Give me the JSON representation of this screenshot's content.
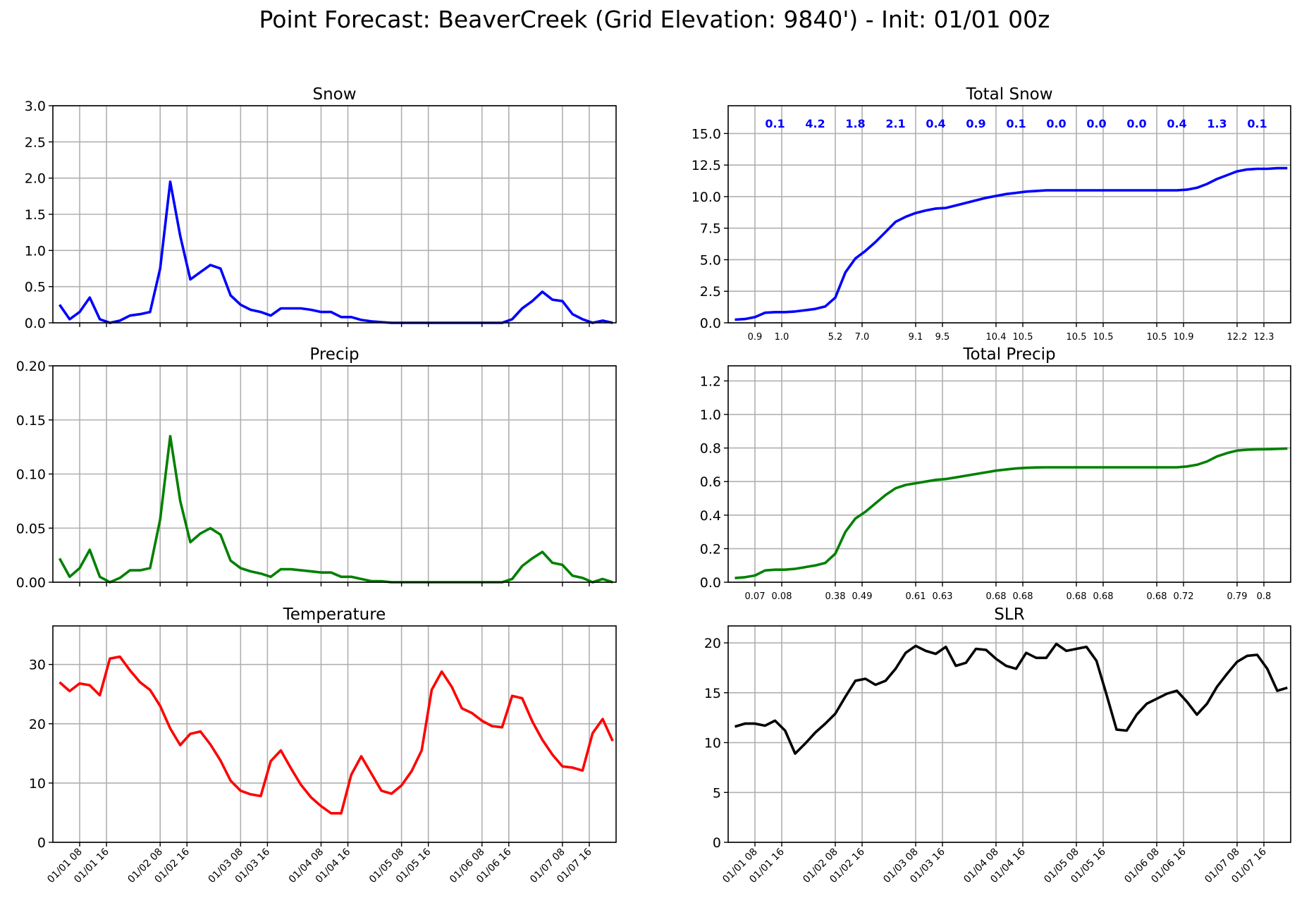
{
  "suptitle": "Point Forecast: BeaverCreek (Grid Elevation: 9840') - Init: 01/01 00z",
  "time_ticks": [
    "01/01 08",
    "01/01 16",
    "01/02 08",
    "01/02 16",
    "01/03 08",
    "01/03 16",
    "01/04 08",
    "01/04 16",
    "01/05 08",
    "01/05 16",
    "01/06 08",
    "01/06 16",
    "01/07 08",
    "01/07 16"
  ],
  "chart_data": [
    {
      "id": "snow",
      "type": "line",
      "title": "Snow",
      "color": "#0000ff",
      "ylim": [
        0,
        3.0
      ],
      "yticks": [
        "0.0",
        "0.5",
        "1.0",
        "1.5",
        "2.0",
        "2.5",
        "3.0"
      ],
      "grid": true,
      "series": [
        {
          "x": [
            2,
            5,
            8,
            11,
            14,
            17,
            20,
            23,
            26,
            29,
            32,
            35,
            38,
            41,
            44,
            47,
            50,
            53,
            56,
            59,
            62,
            65,
            68,
            71,
            74,
            77,
            80,
            83,
            86,
            89,
            92,
            95,
            98,
            101,
            104,
            107,
            110,
            113,
            116,
            119,
            122,
            125,
            128,
            131,
            134,
            137,
            140,
            143,
            146,
            149,
            152,
            155,
            158,
            161,
            164,
            167
          ],
          "values": [
            0.25,
            0.05,
            0.15,
            0.35,
            0.05,
            0.0,
            0.03,
            0.1,
            0.12,
            0.15,
            0.75,
            1.95,
            1.2,
            0.6,
            0.7,
            0.8,
            0.75,
            0.38,
            0.25,
            0.18,
            0.15,
            0.1,
            0.2,
            0.2,
            0.2,
            0.18,
            0.15,
            0.15,
            0.08,
            0.08,
            0.04,
            0.02,
            0.01,
            0.0,
            0.0,
            0.0,
            0.0,
            0.0,
            0.0,
            0.0,
            0.0,
            0.0,
            0.0,
            0.0,
            0.0,
            0.05,
            0.2,
            0.3,
            0.43,
            0.32,
            0.3,
            0.12,
            0.05,
            0.0,
            0.03,
            0.0
          ]
        }
      ]
    },
    {
      "id": "total-snow",
      "type": "line",
      "title": "Total Snow",
      "color": "#0000ff",
      "ylim": [
        0,
        17.2
      ],
      "yticks": [
        "0.0",
        "2.5",
        "5.0",
        "7.5",
        "10.0",
        "12.5",
        "15.0"
      ],
      "grid": true,
      "series": [
        {
          "x": [
            2,
            5,
            8,
            11,
            14,
            17,
            20,
            23,
            26,
            29,
            32,
            35,
            38,
            41,
            44,
            47,
            50,
            53,
            56,
            59,
            62,
            65,
            68,
            71,
            74,
            77,
            80,
            83,
            86,
            89,
            92,
            95,
            98,
            101,
            104,
            107,
            110,
            113,
            116,
            119,
            122,
            125,
            128,
            131,
            134,
            137,
            140,
            143,
            146,
            149,
            152,
            155,
            158,
            161,
            164,
            167
          ],
          "values": [
            0.25,
            0.3,
            0.45,
            0.8,
            0.85,
            0.85,
            0.9,
            1.0,
            1.1,
            1.3,
            2.0,
            4.0,
            5.1,
            5.7,
            6.4,
            7.2,
            8.0,
            8.4,
            8.7,
            8.9,
            9.05,
            9.1,
            9.3,
            9.5,
            9.7,
            9.9,
            10.05,
            10.2,
            10.3,
            10.4,
            10.45,
            10.5,
            10.5,
            10.5,
            10.5,
            10.5,
            10.5,
            10.5,
            10.5,
            10.5,
            10.5,
            10.5,
            10.5,
            10.5,
            10.5,
            10.55,
            10.7,
            11.0,
            11.4,
            11.7,
            12.0,
            12.15,
            12.2,
            12.2,
            12.25,
            12.25
          ]
        }
      ],
      "tick_totals": [
        "0.9",
        "1.0",
        "5.2",
        "7.0",
        "9.1",
        "9.5",
        "10.4",
        "10.5",
        "10.5",
        "10.5",
        "10.5",
        "10.9",
        "12.2",
        "12.3"
      ],
      "interval_labels": [
        "0.1",
        "4.2",
        "1.8",
        "2.1",
        "0.4",
        "0.9",
        "0.1",
        "0.0",
        "0.0",
        "0.0",
        "0.4",
        "1.3",
        "0.1"
      ]
    },
    {
      "id": "precip",
      "type": "line",
      "title": "Precip",
      "color": "#008000",
      "ylim": [
        0,
        0.2
      ],
      "yticks": [
        "0.00",
        "0.05",
        "0.10",
        "0.15",
        "0.20"
      ],
      "grid": true,
      "series": [
        {
          "x": [
            2,
            5,
            8,
            11,
            14,
            17,
            20,
            23,
            26,
            29,
            32,
            35,
            38,
            41,
            44,
            47,
            50,
            53,
            56,
            59,
            62,
            65,
            68,
            71,
            74,
            77,
            80,
            83,
            86,
            89,
            92,
            95,
            98,
            101,
            104,
            107,
            110,
            113,
            116,
            119,
            122,
            125,
            128,
            131,
            134,
            137,
            140,
            143,
            146,
            149,
            152,
            155,
            158,
            161,
            164,
            167
          ],
          "values": [
            0.022,
            0.005,
            0.013,
            0.03,
            0.005,
            0.0,
            0.004,
            0.011,
            0.011,
            0.013,
            0.058,
            0.135,
            0.075,
            0.037,
            0.045,
            0.05,
            0.044,
            0.02,
            0.013,
            0.01,
            0.008,
            0.005,
            0.012,
            0.012,
            0.011,
            0.01,
            0.009,
            0.009,
            0.005,
            0.005,
            0.003,
            0.001,
            0.001,
            0.0,
            0.0,
            0.0,
            0.0,
            0.0,
            0.0,
            0.0,
            0.0,
            0.0,
            0.0,
            0.0,
            0.0,
            0.003,
            0.015,
            0.022,
            0.028,
            0.018,
            0.016,
            0.006,
            0.004,
            0.0,
            0.003,
            0.0
          ]
        }
      ]
    },
    {
      "id": "total-precip",
      "type": "line",
      "title": "Total Precip",
      "color": "#008000",
      "ylim": [
        0,
        1.29
      ],
      "yticks": [
        "0.0",
        "0.2",
        "0.4",
        "0.6",
        "0.8",
        "1.0",
        "1.2"
      ],
      "grid": true,
      "series": [
        {
          "x": [
            2,
            5,
            8,
            11,
            14,
            17,
            20,
            23,
            26,
            29,
            32,
            35,
            38,
            41,
            44,
            47,
            50,
            53,
            56,
            59,
            62,
            65,
            68,
            71,
            74,
            77,
            80,
            83,
            86,
            89,
            92,
            95,
            98,
            101,
            104,
            107,
            110,
            113,
            116,
            119,
            122,
            125,
            128,
            131,
            134,
            137,
            140,
            143,
            146,
            149,
            152,
            155,
            158,
            161,
            164,
            167
          ],
          "values": [
            0.025,
            0.03,
            0.04,
            0.07,
            0.075,
            0.075,
            0.08,
            0.09,
            0.1,
            0.115,
            0.17,
            0.3,
            0.38,
            0.42,
            0.47,
            0.52,
            0.56,
            0.58,
            0.59,
            0.6,
            0.61,
            0.615,
            0.625,
            0.635,
            0.645,
            0.655,
            0.665,
            0.672,
            0.678,
            0.682,
            0.684,
            0.685,
            0.685,
            0.685,
            0.685,
            0.685,
            0.685,
            0.685,
            0.685,
            0.685,
            0.685,
            0.685,
            0.685,
            0.685,
            0.685,
            0.69,
            0.7,
            0.72,
            0.75,
            0.77,
            0.785,
            0.79,
            0.792,
            0.793,
            0.795,
            0.797
          ]
        }
      ],
      "tick_totals": [
        "0.07",
        "0.08",
        "0.38",
        "0.49",
        "0.61",
        "0.63",
        "0.68",
        "0.68",
        "0.68",
        "0.68",
        "0.68",
        "0.72",
        "0.79",
        "0.8"
      ]
    },
    {
      "id": "temperature",
      "type": "line",
      "title": "Temperature",
      "color": "#ff0000",
      "ylim": [
        0,
        36.5
      ],
      "yticks": [
        "0",
        "10",
        "20",
        "30"
      ],
      "grid": true,
      "series": [
        {
          "x": [
            2,
            5,
            8,
            11,
            14,
            17,
            20,
            23,
            26,
            29,
            32,
            35,
            38,
            41,
            44,
            47,
            50,
            53,
            56,
            59,
            62,
            65,
            68,
            71,
            74,
            77,
            80,
            83,
            86,
            89,
            92,
            95,
            98,
            101,
            104,
            107,
            110,
            113,
            116,
            119,
            122,
            125,
            128,
            131,
            134,
            137,
            140,
            143,
            146,
            149,
            152,
            155,
            158,
            161,
            164,
            167
          ],
          "values": [
            27,
            25.5,
            26.8,
            26.5,
            24.8,
            31,
            31.3,
            29,
            27,
            25.7,
            23,
            19.2,
            16.4,
            18.3,
            18.7,
            16.5,
            13.8,
            10.4,
            8.7,
            8.1,
            7.8,
            13.7,
            15.5,
            12.5,
            9.7,
            7.6,
            6.1,
            4.9,
            4.9,
            11.4,
            14.5,
            11.6,
            8.7,
            8.2,
            9.6,
            12,
            15.5,
            25.7,
            28.8,
            26.2,
            22.6,
            21.8,
            20.5,
            19.6,
            19.4,
            24.7,
            24.3,
            20.4,
            17.3,
            14.8,
            12.8,
            12.6,
            12.1,
            18.4,
            20.8,
            17.1
          ]
        }
      ]
    },
    {
      "id": "slr",
      "type": "line",
      "title": "SLR",
      "color": "#000000",
      "ylim": [
        0,
        21.7
      ],
      "yticks": [
        "0",
        "5",
        "10",
        "15",
        "20"
      ],
      "grid": true,
      "series": [
        {
          "x": [
            2,
            5,
            8,
            11,
            14,
            17,
            20,
            23,
            26,
            29,
            32,
            35,
            38,
            41,
            44,
            47,
            50,
            53,
            56,
            59,
            62,
            65,
            68,
            71,
            74,
            77,
            80,
            83,
            86,
            89,
            92,
            95,
            98,
            101,
            104,
            107,
            110,
            113,
            116,
            119,
            122,
            125,
            128,
            131,
            134,
            137,
            140,
            143,
            146,
            149,
            152,
            155,
            158,
            161,
            164,
            167
          ],
          "values": [
            11.6,
            11.9,
            11.9,
            11.7,
            12.2,
            11.2,
            8.9,
            9.9,
            11,
            11.9,
            12.9,
            14.6,
            16.2,
            16.4,
            15.8,
            16.2,
            17.4,
            19,
            19.7,
            19.2,
            18.9,
            19.6,
            17.7,
            18,
            19.4,
            19.3,
            18.4,
            17.7,
            17.4,
            19,
            18.5,
            18.5,
            19.9,
            19.2,
            19.4,
            19.6,
            18.2,
            14.8,
            11.3,
            11.2,
            12.8,
            13.9,
            14.4,
            14.9,
            15.2,
            14.1,
            12.8,
            13.9,
            15.6,
            16.9,
            18.1,
            18.7,
            18.8,
            17.4,
            15.2,
            15.5
          ]
        }
      ]
    }
  ]
}
